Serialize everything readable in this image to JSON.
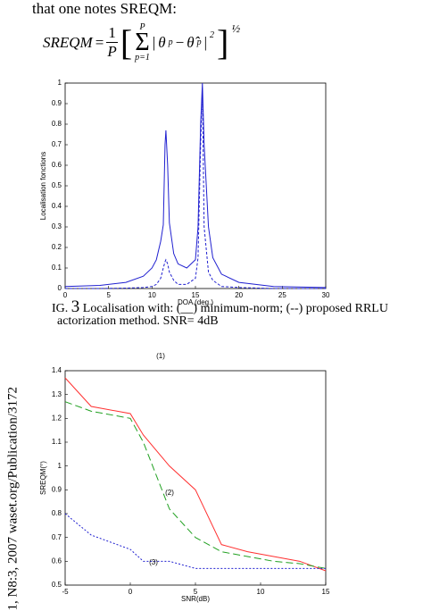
{
  "text": "that one notes SREQM:",
  "formula": {
    "lhs": "SREQM",
    "eq": "=",
    "num": "1",
    "den": "P",
    "sum_top": "P",
    "sum": "Σ",
    "sum_bottom": "p=1",
    "theta": "θ",
    "sub": "p",
    "minus": "−",
    "theta_hat": "θ̂",
    "sq": "2",
    "exp": "½"
  },
  "caption": [
    "IG. 3 Localisation with: (__) minimum-norm; (--) proposed RRLU",
    "actorization method. SNR= 4dB"
  ],
  "fig_no": "3",
  "side_text": "1, N8:3, 2007 waset.org/Publication/3172",
  "chart_data": [
    {
      "type": "line",
      "xlabel": "DOA (deg.)",
      "ylabel": "Localisation fonctions",
      "x": [
        0,
        4,
        7,
        9,
        10,
        10.5,
        11,
        11.3,
        11.5,
        11.6,
        11.8,
        12,
        12.5,
        13,
        14,
        15,
        15.3,
        15.6,
        15.8,
        16,
        16.5,
        17,
        18,
        20,
        24,
        30
      ],
      "series": [
        {
          "color": "#2020d0",
          "dash": "none",
          "values": [
            0.01,
            0.015,
            0.03,
            0.06,
            0.1,
            0.14,
            0.23,
            0.31,
            0.7,
            0.77,
            0.6,
            0.32,
            0.17,
            0.12,
            0.1,
            0.14,
            0.3,
            0.8,
            1.0,
            0.7,
            0.3,
            0.15,
            0.07,
            0.03,
            0.01,
            0.005
          ]
        },
        {
          "color": "#2020d0",
          "dash": "3,2",
          "values": [
            0,
            0,
            0.002,
            0.005,
            0.01,
            0.02,
            0.05,
            0.1,
            0.13,
            0.14,
            0.12,
            0.08,
            0.04,
            0.02,
            0.02,
            0.05,
            0.15,
            0.7,
            0.97,
            0.3,
            0.08,
            0.04,
            0.01,
            0.005,
            0,
            0
          ]
        }
      ],
      "xlim": [
        0,
        30
      ],
      "xticks": [
        0,
        5,
        10,
        15,
        20,
        25,
        30
      ],
      "ylim": [
        0,
        1
      ],
      "yticks": [
        0,
        0.1,
        0.2,
        0.3,
        0.4,
        0.5,
        0.6,
        0.7,
        0.8,
        0.9,
        1
      ]
    },
    {
      "type": "line",
      "xlabel": "SNR(dB)",
      "ylabel": "SREQM(°)",
      "x": [
        -5,
        -3,
        0,
        1,
        3,
        5,
        7,
        9,
        11,
        13,
        15
      ],
      "series": [
        {
          "color": "#ff3030",
          "dash": "none",
          "values": [
            1.37,
            1.25,
            1.22,
            1.13,
            1.0,
            0.9,
            0.67,
            0.64,
            0.62,
            0.6,
            0.56
          ]
        },
        {
          "color": "#20a020",
          "dash": "8,4",
          "values": [
            1.27,
            1.23,
            1.2,
            1.1,
            0.82,
            0.7,
            0.64,
            0.62,
            0.6,
            0.59,
            0.57
          ]
        },
        {
          "color": "#2020d0",
          "dash": "2,2",
          "values": [
            0.8,
            0.71,
            0.65,
            0.6,
            0.6,
            0.57,
            0.57,
            0.57,
            0.57,
            0.57,
            0.57
          ]
        }
      ],
      "annotations": [
        "(1)",
        "(2)",
        "(3)"
      ],
      "xlim": [
        -5,
        15
      ],
      "xticks": [
        -5,
        0,
        5,
        10,
        15
      ],
      "ylim": [
        0.5,
        1.4
      ],
      "yticks": [
        0.5,
        0.6,
        0.7,
        0.8,
        0.9,
        1,
        1.1,
        1.2,
        1.3,
        1.4
      ]
    }
  ]
}
